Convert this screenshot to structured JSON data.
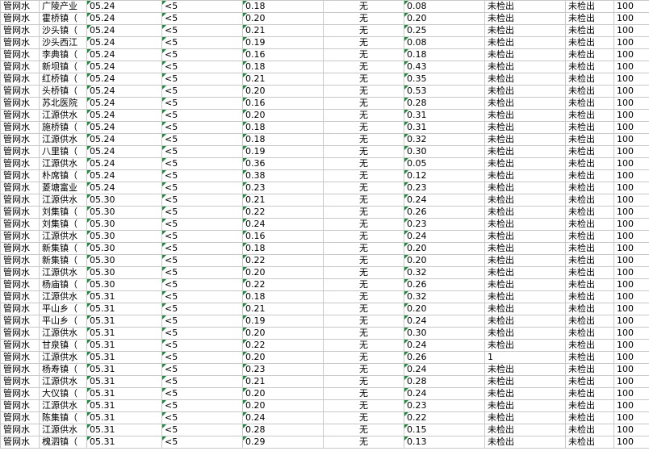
{
  "table": {
    "rows": [
      [
        "管网水",
        "广陵产业",
        "05.24",
        "<5",
        "0.18",
        "无",
        "0.08",
        "未检出",
        "未检出",
        "100"
      ],
      [
        "管网水",
        "霍桥镇（",
        "05.24",
        "<5",
        "0.20",
        "无",
        "0.20",
        "未检出",
        "未检出",
        "100"
      ],
      [
        "管网水",
        "沙头镇（",
        "05.24",
        "<5",
        "0.21",
        "无",
        "0.25",
        "未检出",
        "未检出",
        "100"
      ],
      [
        "管网水",
        "沙头西江",
        "05.24",
        "<5",
        "0.19",
        "无",
        "0.08",
        "未检出",
        "未检出",
        "100"
      ],
      [
        "管网水",
        "李典镇（",
        "05.24",
        "<5",
        "0.16",
        "无",
        "0.18",
        "未检出",
        "未检出",
        "100"
      ],
      [
        "管网水",
        "新坝镇（",
        "05.24",
        "<5",
        "0.18",
        "无",
        "0.43",
        "未检出",
        "未检出",
        "100"
      ],
      [
        "管网水",
        "红桥镇（",
        "05.24",
        "<5",
        "0.21",
        "无",
        "0.35",
        "未检出",
        "未检出",
        "100"
      ],
      [
        "管网水",
        "头桥镇（",
        "05.24",
        "<5",
        "0.20",
        "无",
        "0.53",
        "未检出",
        "未检出",
        "100"
      ],
      [
        "管网水",
        "苏北医院",
        "05.24",
        "<5",
        "0.16",
        "无",
        "0.28",
        "未检出",
        "未检出",
        "100"
      ],
      [
        "管网水",
        "江源供水",
        "05.24",
        "<5",
        "0.20",
        "无",
        "0.31",
        "未检出",
        "未检出",
        "100"
      ],
      [
        "管网水",
        "施桥镇（",
        "05.24",
        "<5",
        "0.18",
        "无",
        "0.31",
        "未检出",
        "未检出",
        "100"
      ],
      [
        "管网水",
        "江源供水",
        "05.24",
        "<5",
        "0.18",
        "无",
        "0.32",
        "未检出",
        "未检出",
        "100"
      ],
      [
        "管网水",
        "八里镇（",
        "05.24",
        "<5",
        "0.19",
        "无",
        "0.30",
        "未检出",
        "未检出",
        "100"
      ],
      [
        "管网水",
        "江源供水",
        "05.24",
        "<5",
        "0.36",
        "无",
        "0.05",
        "未检出",
        "未检出",
        "100"
      ],
      [
        "管网水",
        "朴席镇（",
        "05.24",
        "<5",
        "0.38",
        "无",
        "0.12",
        "未检出",
        "未检出",
        "100"
      ],
      [
        "管网水",
        "菱塘富业",
        "05.24",
        "<5",
        "0.23",
        "无",
        "0.23",
        "未检出",
        "未检出",
        "100"
      ],
      [
        "管网水",
        "江源供水",
        "05.30",
        "<5",
        "0.21",
        "无",
        "0.24",
        "未检出",
        "未检出",
        "100"
      ],
      [
        "管网水",
        "刘集镇（",
        "05.30",
        "<5",
        "0.22",
        "无",
        "0.26",
        "未检出",
        "未检出",
        "100"
      ],
      [
        "管网水",
        "刘集镇（",
        "05.30",
        "<5",
        "0.24",
        "无",
        "0.23",
        "未检出",
        "未检出",
        "100"
      ],
      [
        "管网水",
        "江源供水",
        "05.30",
        "<5",
        "0.16",
        "无",
        "0.24",
        "未检出",
        "未检出",
        "100"
      ],
      [
        "管网水",
        "新集镇（",
        "05.30",
        "<5",
        "0.18",
        "无",
        "0.20",
        "未检出",
        "未检出",
        "100"
      ],
      [
        "管网水",
        "新集镇（",
        "05.30",
        "<5",
        "0.22",
        "无",
        "0.20",
        "未检出",
        "未检出",
        "100"
      ],
      [
        "管网水",
        "江源供水",
        "05.30",
        "<5",
        "0.20",
        "无",
        "0.32",
        "未检出",
        "未检出",
        "100"
      ],
      [
        "管网水",
        "杨庙镇（",
        "05.30",
        "<5",
        "0.22",
        "无",
        "0.26",
        "未检出",
        "未检出",
        "100"
      ],
      [
        "管网水",
        "江源供水",
        "05.31",
        "<5",
        "0.18",
        "无",
        "0.32",
        "未检出",
        "未检出",
        "100"
      ],
      [
        "管网水",
        "平山乡（",
        "05.31",
        "<5",
        "0.21",
        "无",
        "0.20",
        "未检出",
        "未检出",
        "100"
      ],
      [
        "管网水",
        "平山乡（",
        "05.31",
        "<5",
        "0.19",
        "无",
        "0.24",
        "未检出",
        "未检出",
        "100"
      ],
      [
        "管网水",
        "江源供水",
        "05.31",
        "<5",
        "0.20",
        "无",
        "0.30",
        "未检出",
        "未检出",
        "100"
      ],
      [
        "管网水",
        "甘泉镇（",
        "05.31",
        "<5",
        "0.22",
        "无",
        "0.24",
        "未检出",
        "未检出",
        "100"
      ],
      [
        "管网水",
        "江源供水",
        "05.31",
        "<5",
        "0.20",
        "无",
        "0.26",
        "1",
        "未检出",
        "100"
      ],
      [
        "管网水",
        "杨寿镇（",
        "05.31",
        "<5",
        "0.23",
        "无",
        "0.24",
        "未检出",
        "未检出",
        "100"
      ],
      [
        "管网水",
        "江源供水",
        "05.31",
        "<5",
        "0.21",
        "无",
        "0.28",
        "未检出",
        "未检出",
        "100"
      ],
      [
        "管网水",
        "大仪镇（",
        "05.31",
        "<5",
        "0.20",
        "无",
        "0.24",
        "未检出",
        "未检出",
        "100"
      ],
      [
        "管网水",
        "江源供水",
        "05.31",
        "<5",
        "0.20",
        "无",
        "0.23",
        "未检出",
        "未检出",
        "100"
      ],
      [
        "管网水",
        "陈集镇（",
        "05.31",
        "<5",
        "0.24",
        "无",
        "0.22",
        "未检出",
        "未检出",
        "100"
      ],
      [
        "管网水",
        "江源供水",
        "05.31",
        "<5",
        "0.28",
        "无",
        "0.15",
        "未检出",
        "未检出",
        "100"
      ],
      [
        "管网水",
        "槐泗镇（",
        "05.31",
        "<5",
        "0.29",
        "无",
        "0.13",
        "未检出",
        "未检出",
        "100"
      ]
    ]
  }
}
